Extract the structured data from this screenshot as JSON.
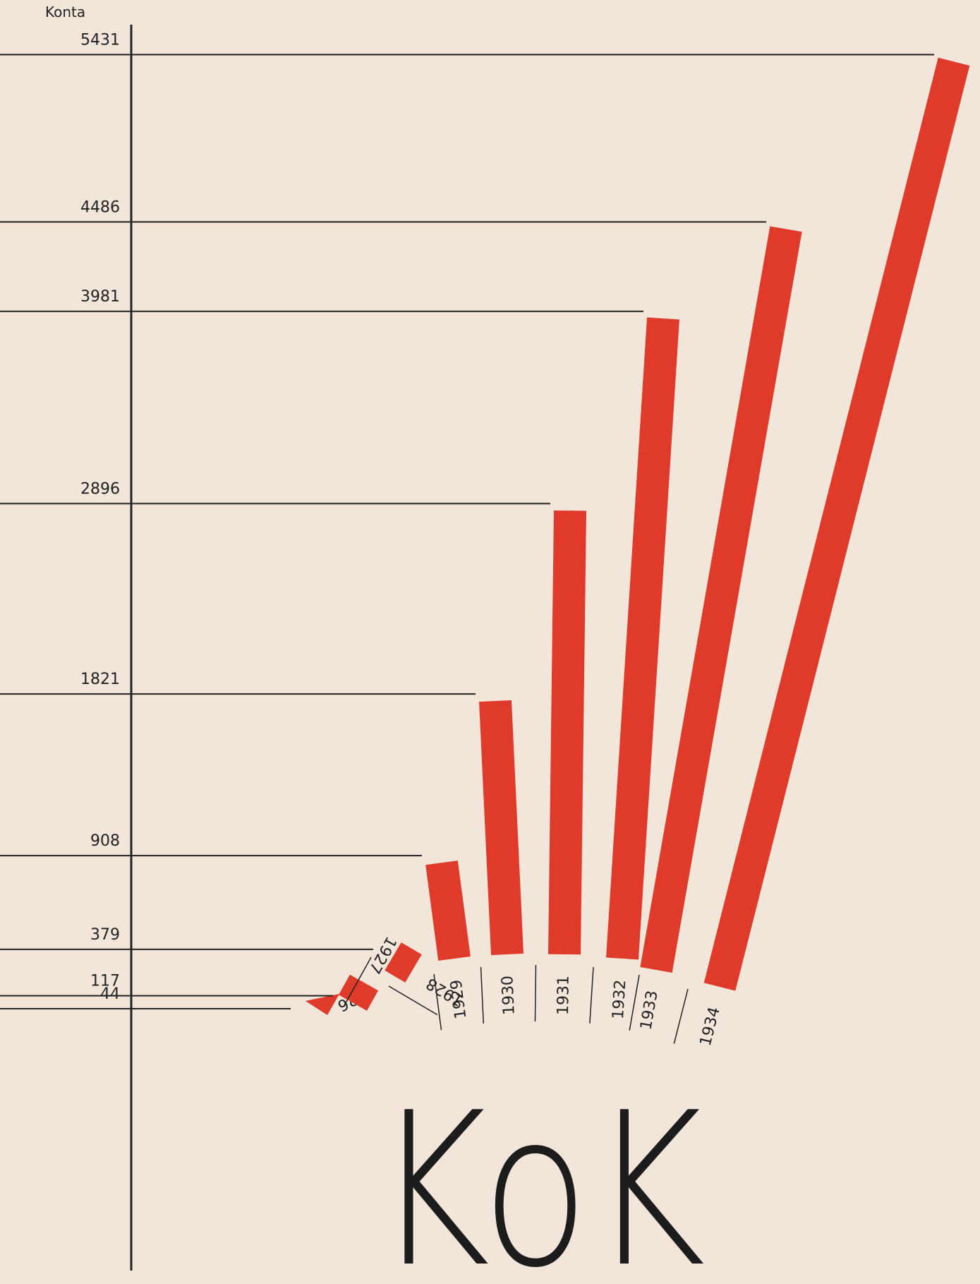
{
  "chart_data": {
    "type": "fan-bar",
    "axis_label": "Konta",
    "annotation": "KoK",
    "categories": [
      "1926",
      "1927",
      "1928",
      "1929",
      "1930",
      "1931",
      "1932",
      "1933",
      "1934"
    ],
    "values": [
      44,
      117,
      379,
      908,
      1821,
      2896,
      3981,
      4486,
      5431
    ],
    "color": "#e03a2a",
    "ylim": [
      0,
      5500
    ]
  }
}
